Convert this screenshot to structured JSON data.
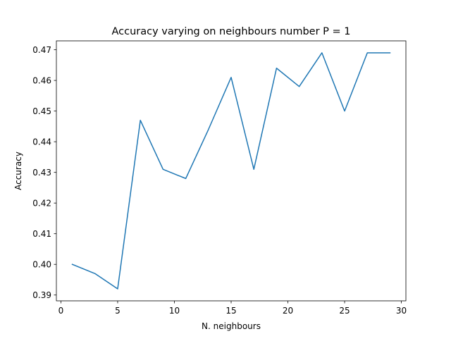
{
  "chart_data": {
    "type": "line",
    "title": "Accuracy varying on neighbours number P = 1",
    "xlabel": "N. neighbours",
    "ylabel": "Accuracy",
    "xlim": [
      -0.4,
      30.4
    ],
    "ylim": [
      0.3881,
      0.4729
    ],
    "xticks": [
      0,
      5,
      10,
      15,
      20,
      25,
      30
    ],
    "xtick_labels": [
      "0",
      "5",
      "10",
      "15",
      "20",
      "25",
      "30"
    ],
    "yticks": [
      0.39,
      0.4,
      0.41,
      0.42,
      0.43,
      0.44,
      0.45,
      0.46,
      0.47
    ],
    "ytick_labels": [
      "0.39",
      "0.40",
      "0.41",
      "0.42",
      "0.43",
      "0.44",
      "0.45",
      "0.46",
      "0.47"
    ],
    "grid": false,
    "series": [
      {
        "color": "#1f77b4",
        "x": [
          1,
          3,
          5,
          7,
          9,
          11,
          13,
          15,
          17,
          19,
          21,
          23,
          25,
          27,
          29
        ],
        "y": [
          0.4,
          0.397,
          0.392,
          0.447,
          0.431,
          0.428,
          0.444,
          0.461,
          0.431,
          0.464,
          0.458,
          0.469,
          0.45,
          0.469,
          0.469
        ]
      }
    ]
  }
}
